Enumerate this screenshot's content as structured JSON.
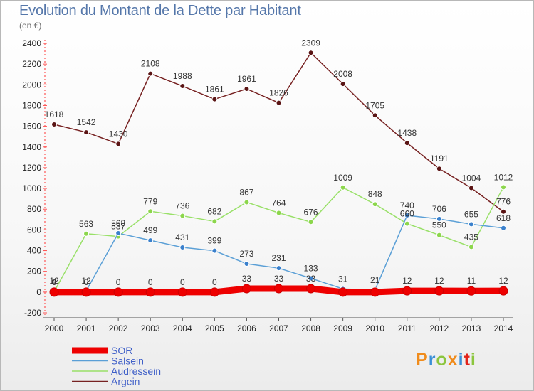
{
  "header": {
    "title": "Evolution du Montant de la Dette par Habitant",
    "subtitle": "(en €)"
  },
  "brand": {
    "logo": "Proxiti",
    "colors": [
      "#f08c1c",
      "#3a8fd6",
      "#8cc63e",
      "#f08c1c",
      "#3a8fd6",
      "#e2231a",
      "#8cc63e"
    ]
  },
  "chart_data": {
    "type": "line",
    "title": "Evolution du Montant de la Dette par Habitant",
    "subtitle": "(en €)",
    "xlabel": "",
    "ylabel": "",
    "x": [
      2000,
      2001,
      2002,
      2003,
      2004,
      2005,
      2006,
      2007,
      2008,
      2009,
      2010,
      2011,
      2012,
      2013,
      2014
    ],
    "ylim": [
      -200,
      2400
    ],
    "yticks": [
      -200,
      0,
      200,
      400,
      600,
      800,
      1000,
      1200,
      1400,
      1600,
      1800,
      2000,
      2200,
      2400
    ],
    "grid": false,
    "legend_position": "bottom-left",
    "series": [
      {
        "name": "SOR",
        "color": "#ee0000",
        "values": [
          0,
          0,
          0,
          0,
          0,
          0,
          33,
          33,
          33,
          0,
          0,
          12,
          12,
          11,
          12
        ],
        "labels": [
          "0",
          "0",
          "0",
          "0",
          "0",
          "0",
          "33",
          "33",
          "33",
          "",
          "",
          "12",
          "12",
          "11",
          "12"
        ]
      },
      {
        "name": "Salsein",
        "color": "#5a9fd6",
        "values": [
          12,
          12,
          568,
          499,
          431,
          399,
          273,
          231,
          133,
          31,
          21,
          740,
          706,
          655,
          618
        ],
        "labels": [
          "12",
          "12",
          "568",
          "499",
          "431",
          "399",
          "273",
          "231",
          "133",
          "31",
          "21",
          "740",
          "706",
          "655",
          "618"
        ]
      },
      {
        "name": "Audressein",
        "color": "#99e068",
        "values": [
          4,
          563,
          537,
          779,
          736,
          682,
          867,
          764,
          676,
          1009,
          848,
          660,
          550,
          435,
          1012
        ],
        "labels": [
          "4",
          "563",
          "537",
          "779",
          "736",
          "682",
          "867",
          "764",
          "676",
          "1009",
          "848",
          "660",
          "550",
          "435",
          "1012"
        ]
      },
      {
        "name": "Argein",
        "color": "#772222",
        "values": [
          1618,
          1542,
          1430,
          2108,
          1988,
          1861,
          1961,
          1826,
          2309,
          2008,
          1705,
          1438,
          1191,
          1004,
          776
        ],
        "labels": [
          "1618",
          "1542",
          "1430",
          "2108",
          "1988",
          "1861",
          "1961",
          "1826",
          "2309",
          "2008",
          "1705",
          "1438",
          "1191",
          "1004",
          "776"
        ]
      }
    ]
  }
}
